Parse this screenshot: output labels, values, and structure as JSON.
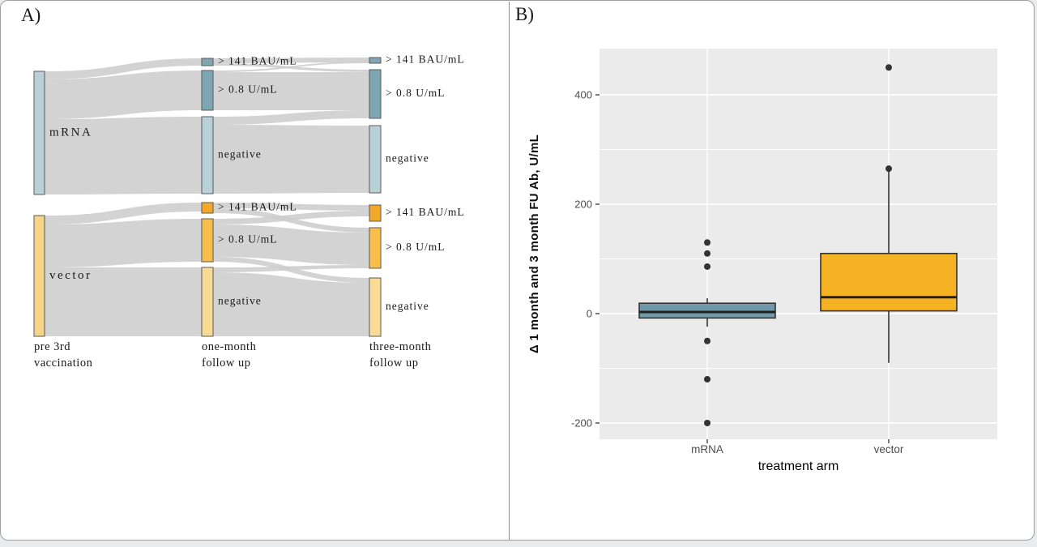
{
  "figure": {
    "panel_a_tag": "A)",
    "panel_b_tag": "B)"
  },
  "colors": {
    "tealDark": "#7fa6b3",
    "tealLight": "#bad0d7",
    "orangeDark": "#f2a82b",
    "orangeMid": "#f6be4a",
    "yellowLight": "#f8dc96",
    "yellowNode": "#f6d386",
    "flow": "#cdcdcd",
    "nodeStroke": "#5a5a5a",
    "boxTeal": "#6f98a8",
    "boxOrange": "#f5b324",
    "panelBg": "#ebebeb",
    "grid": "#ffffff",
    "axisText": "#4d4d4d",
    "ink": "#333333"
  },
  "chart_data": [
    {
      "type": "sankey",
      "panel": "A",
      "column_labels": [
        [
          "pre 3rd",
          "vaccination"
        ],
        [
          "one-month",
          "follow up"
        ],
        [
          "three-month",
          "follow up"
        ]
      ],
      "groups": [
        "mRNA",
        "vector"
      ],
      "node_categories": [
        "> 141 BAU/mL",
        "> 0.8 U/mL",
        "negative"
      ],
      "nodes": [
        {
          "id": "pre-mrna",
          "col": 0,
          "label": "mRNA",
          "y": 88,
          "h": 152,
          "color": "tealLight"
        },
        {
          "id": "pre-vector",
          "col": 0,
          "label": "vector",
          "y": 266,
          "h": 149,
          "color": "yellowNode"
        },
        {
          "id": "m1-141-mrna",
          "col": 1,
          "label": "> 141 BAU/mL",
          "y": 72,
          "h": 9,
          "color": "tealDark"
        },
        {
          "id": "m1-08-mrna",
          "col": 1,
          "label": "> 0.8 U/mL",
          "y": 87,
          "h": 49,
          "color": "tealDark"
        },
        {
          "id": "m1-neg-mrna",
          "col": 1,
          "label": "negative",
          "y": 144,
          "h": 95,
          "color": "tealLight"
        },
        {
          "id": "m1-141-vector",
          "col": 1,
          "label": "> 141 BAU/mL",
          "y": 250,
          "h": 13,
          "color": "orangeDark"
        },
        {
          "id": "m1-08-vector",
          "col": 1,
          "label": "> 0.8 U/mL",
          "y": 270,
          "h": 53,
          "color": "orangeMid"
        },
        {
          "id": "m1-neg-vector",
          "col": 1,
          "label": "negative",
          "y": 330,
          "h": 85,
          "color": "yellowLight"
        },
        {
          "id": "m3-141-mrna",
          "col": 2,
          "label": "> 141 BAU/mL",
          "y": 71,
          "h": 7,
          "color": "tealDark"
        },
        {
          "id": "m3-08-mrna",
          "col": 2,
          "label": "> 0.8 U/mL",
          "y": 86,
          "h": 60,
          "color": "tealDark"
        },
        {
          "id": "m3-neg-mrna",
          "col": 2,
          "label": "negative",
          "y": 155,
          "h": 83,
          "color": "tealLight"
        },
        {
          "id": "m3-141-vector",
          "col": 2,
          "label": "> 141 BAU/mL",
          "y": 253,
          "h": 20,
          "color": "orangeDark"
        },
        {
          "id": "m3-08-vector",
          "col": 2,
          "label": "> 0.8 U/mL",
          "y": 281,
          "h": 50,
          "color": "orangeMid"
        },
        {
          "id": "m3-neg-vector",
          "col": 2,
          "label": "negative",
          "y": 343,
          "h": 72,
          "color": "yellowLight"
        }
      ],
      "links": [
        {
          "col": 0,
          "s": [
            88,
            98
          ],
          "t": [
            72,
            81
          ]
        },
        {
          "col": 0,
          "s": [
            98,
            147
          ],
          "t": [
            87,
            136
          ]
        },
        {
          "col": 0,
          "s": [
            147,
            240
          ],
          "t": [
            144,
            239
          ]
        },
        {
          "col": 1,
          "s": [
            72,
            78
          ],
          "t": [
            71,
            77
          ]
        },
        {
          "col": 1,
          "s": [
            78,
            81
          ],
          "t": [
            86,
            89
          ]
        },
        {
          "col": 1,
          "s": [
            87,
            89
          ],
          "t": [
            76,
            78
          ]
        },
        {
          "col": 1,
          "s": [
            89,
            136
          ],
          "t": [
            89,
            136
          ]
        },
        {
          "col": 1,
          "s": [
            144,
            154
          ],
          "t": [
            136,
            146
          ]
        },
        {
          "col": 1,
          "s": [
            154,
            239
          ],
          "t": [
            155,
            238
          ]
        },
        {
          "col": 0,
          "s": [
            266,
            277
          ],
          "t": [
            250,
            261
          ]
        },
        {
          "col": 0,
          "s": [
            277,
            330
          ],
          "t": [
            270,
            323
          ]
        },
        {
          "col": 0,
          "s": [
            330,
            415
          ],
          "t": [
            330,
            415
          ]
        },
        {
          "col": 1,
          "s": [
            250,
            257
          ],
          "t": [
            253,
            260
          ]
        },
        {
          "col": 1,
          "s": [
            257,
            263
          ],
          "t": [
            281,
            287
          ]
        },
        {
          "col": 1,
          "s": [
            270,
            277
          ],
          "t": [
            260,
            267
          ]
        },
        {
          "col": 1,
          "s": [
            277,
            317
          ],
          "t": [
            287,
            327
          ]
        },
        {
          "col": 1,
          "s": [
            317,
            323
          ],
          "t": [
            343,
            349
          ]
        },
        {
          "col": 1,
          "s": [
            330,
            336
          ],
          "t": [
            327,
            331
          ]
        },
        {
          "col": 1,
          "s": [
            336,
            415
          ],
          "t": [
            349,
            415
          ]
        }
      ]
    },
    {
      "type": "boxplot",
      "panel": "B",
      "xlabel": "treatment arm",
      "ylabel": "Δ 1 month and 3 month FU Ab, U/mL",
      "categories": [
        "mRNA",
        "vector"
      ],
      "yticks": [
        -200,
        0,
        200,
        400
      ],
      "yminor": [
        -100,
        100,
        300
      ],
      "ylim": [
        -230,
        485
      ],
      "grid": "on",
      "series": [
        {
          "name": "mRNA",
          "colorKey": "boxTeal",
          "q1": -8,
          "median": 3,
          "q3": 19,
          "whisker_low": -24,
          "whisker_high": 28,
          "outliers": [
            130,
            110,
            86,
            -50,
            -120,
            -200
          ]
        },
        {
          "name": "vector",
          "colorKey": "boxOrange",
          "q1": 5,
          "median": 30,
          "q3": 110,
          "whisker_low": -90,
          "whisker_high": 265,
          "outliers": [
            265,
            450
          ]
        }
      ]
    }
  ]
}
